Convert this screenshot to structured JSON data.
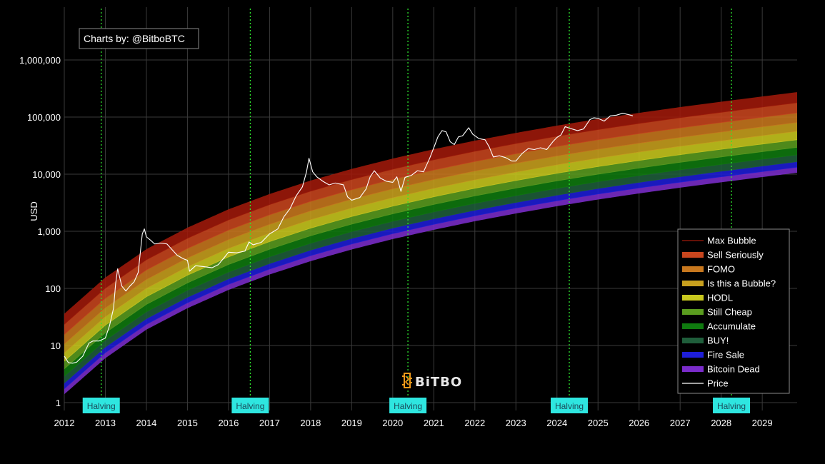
{
  "credit": "Charts by: @BitboBTC",
  "watermark": "BiTBO",
  "colors": {
    "background": "#000000",
    "grid": "#3a3a3a",
    "halving_line": "#2ee62e",
    "halving_label_bg": "#2ee6e0",
    "price_line": "#ffffff"
  },
  "chart_data": {
    "type": "line",
    "title": "",
    "xlabel": "",
    "ylabel": "USD",
    "y_scale": "log",
    "xlim": [
      2012,
      2029.85
    ],
    "ylim": [
      1,
      2000000
    ],
    "x_ticks": [
      {
        "value": 2012,
        "label": "2012"
      },
      {
        "value": 2013,
        "label": "2013"
      },
      {
        "value": 2014,
        "label": "2014"
      },
      {
        "value": 2015,
        "label": "2015"
      },
      {
        "value": 2016,
        "label": "2016"
      },
      {
        "value": 2017,
        "label": "2017"
      },
      {
        "value": 2018,
        "label": "2018"
      },
      {
        "value": 2019,
        "label": "2019"
      },
      {
        "value": 2020,
        "label": "2020"
      },
      {
        "value": 2021,
        "label": "2021"
      },
      {
        "value": 2022,
        "label": "2022"
      },
      {
        "value": 2023,
        "label": "2023"
      },
      {
        "value": 2024,
        "label": "2024"
      },
      {
        "value": 2025,
        "label": "2025"
      },
      {
        "value": 2026,
        "label": "2026"
      },
      {
        "value": 2027,
        "label": "2027"
      },
      {
        "value": 2028,
        "label": "2028"
      },
      {
        "value": 2029,
        "label": "2029"
      }
    ],
    "y_ticks": [
      {
        "value": 1,
        "label": "1"
      },
      {
        "value": 10,
        "label": "10"
      },
      {
        "value": 100,
        "label": "100"
      },
      {
        "value": 1000,
        "label": "1,000"
      },
      {
        "value": 10000,
        "label": "10,000"
      },
      {
        "value": 100000,
        "label": "100,000"
      },
      {
        "value": 1000000,
        "label": "1,000,000"
      }
    ],
    "grid": true,
    "legend_placement": "bottom-right",
    "band_boundaries": {
      "x": [
        2012.0,
        2013.0,
        2014.0,
        2015.0,
        2016.0,
        2017.0,
        2018.0,
        2019.0,
        2020.0,
        2021.0,
        2022.0,
        2023.0,
        2024.0,
        2025.0,
        2026.0,
        2027.0,
        2028.0,
        2029.0,
        2029.85
      ],
      "levels": [
        [
          1.4,
          6,
          19,
          45,
          94,
          175,
          300,
          480,
          730,
          1060,
          1500,
          2050,
          2750,
          3600,
          4600,
          5800,
          7200,
          8900,
          10600
        ],
        [
          1.75,
          7.5,
          23.5,
          56,
          118,
          218,
          375,
          600,
          910,
          1325,
          1870,
          2560,
          3430,
          4500,
          5750,
          7250,
          9000,
          11100,
          13250
        ],
        [
          2.2,
          9.4,
          29.5,
          70,
          147,
          272,
          469,
          750,
          1140,
          1660,
          2340,
          3200,
          4290,
          5620,
          7190,
          9060,
          11250,
          13900,
          16560
        ],
        [
          2.9,
          12.4,
          39,
          93,
          194,
          359,
          619,
          990,
          1500,
          2190,
          3090,
          4220,
          5660,
          7420,
          9490,
          11960,
          14850,
          18350,
          21860
        ],
        [
          3.9,
          16.7,
          52.5,
          125,
          262,
          485,
          835,
          1335,
          2025,
          2955,
          4170,
          5700,
          7640,
          10000,
          12800,
          16150,
          20050,
          24770,
          29500
        ],
        [
          5.3,
          22.7,
          71.5,
          170,
          356,
          660,
          1136,
          1816,
          2755,
          4020,
          5670,
          7750,
          10390,
          13600,
          17400,
          21960,
          27270,
          33690,
          40130
        ],
        [
          7.4,
          31.8,
          100,
          238,
          499,
          924,
          1590,
          2542,
          3857,
          5630,
          7940,
          10850,
          14550,
          19040,
          24360,
          30740,
          38180,
          47170,
          56180
        ],
        [
          10.6,
          45.5,
          143,
          340,
          713,
          1321,
          2274,
          3635,
          5516,
          8050,
          11350,
          15520,
          20800,
          27230,
          34830,
          43960,
          54600,
          67450,
          80340
        ],
        [
          15.6,
          66.9,
          210,
          500,
          1048,
          1942,
          3343,
          5343,
          8108,
          11830,
          16690,
          22810,
          30580,
          40030,
          51200,
          64620,
          80260,
          99150,
          118100
        ],
        [
          23.5,
          101,
          317,
          755,
          1582,
          2932,
          5047,
          8068,
          12240,
          17870,
          25200,
          34440,
          46170,
          60440,
          77310,
          97570,
          121200,
          149700,
          178300
        ],
        [
          36,
          155,
          486,
          1157,
          2424,
          4493,
          7735,
          12360,
          18760,
          27380,
          38620,
          52780,
          70760,
          92620,
          118500,
          149500,
          185700,
          229400,
          273300
        ]
      ]
    },
    "band_colors": [
      "#7b2ccb",
      "#1e1ed8",
      "#1f5e3b",
      "#0f7a0f",
      "#5a9c1f",
      "#c8c81e",
      "#c8a01e",
      "#c8781e",
      "#c8461e",
      "#a0190a"
    ],
    "series": [
      {
        "name": "Price",
        "color": "#ffffff",
        "x": [
          2012.0,
          2012.1,
          2012.2,
          2012.3,
          2012.45,
          2012.6,
          2012.7,
          2012.85,
          2013.0,
          2013.1,
          2013.2,
          2013.25,
          2013.3,
          2013.4,
          2013.5,
          2013.6,
          2013.7,
          2013.8,
          2013.9,
          2013.95,
          2014.0,
          2014.1,
          2014.2,
          2014.35,
          2014.5,
          2014.6,
          2014.75,
          2014.9,
          2015.0,
          2015.05,
          2015.2,
          2015.4,
          2015.6,
          2015.75,
          2015.9,
          2016.0,
          2016.2,
          2016.4,
          2016.5,
          2016.6,
          2016.8,
          2017.0,
          2017.2,
          2017.35,
          2017.5,
          2017.65,
          2017.8,
          2017.9,
          2017.96,
          2018.05,
          2018.15,
          2018.3,
          2018.45,
          2018.6,
          2018.8,
          2018.9,
          2019.0,
          2019.2,
          2019.35,
          2019.45,
          2019.55,
          2019.7,
          2019.85,
          2020.0,
          2020.1,
          2020.2,
          2020.3,
          2020.45,
          2020.6,
          2020.75,
          2020.9,
          2021.0,
          2021.1,
          2021.2,
          2021.3,
          2021.4,
          2021.5,
          2021.6,
          2021.7,
          2021.85,
          2021.95,
          2022.1,
          2022.25,
          2022.35,
          2022.45,
          2022.6,
          2022.75,
          2022.9,
          2023.0,
          2023.15,
          2023.3,
          2023.45,
          2023.6,
          2023.75,
          2023.9,
          2024.0,
          2024.1,
          2024.2,
          2024.3,
          2024.5,
          2024.65,
          2024.8,
          2024.9,
          2025.0,
          2025.15,
          2025.3,
          2025.45,
          2025.6,
          2025.75,
          2025.85
        ],
        "y": [
          6.5,
          5.0,
          4.9,
          5.1,
          6.5,
          11,
          12,
          12,
          13.5,
          22,
          45,
          120,
          220,
          110,
          90,
          110,
          130,
          190,
          900,
          1100,
          800,
          700,
          600,
          620,
          600,
          500,
          380,
          330,
          310,
          200,
          250,
          240,
          230,
          260,
          350,
          430,
          420,
          450,
          650,
          580,
          640,
          900,
          1100,
          1800,
          2500,
          4200,
          6000,
          11000,
          19000,
          11000,
          9000,
          7500,
          6500,
          7000,
          6500,
          4000,
          3500,
          3900,
          5500,
          9000,
          11500,
          8500,
          7500,
          7200,
          9000,
          5000,
          8800,
          9500,
          11500,
          11000,
          19000,
          29000,
          45000,
          58000,
          55000,
          37000,
          33000,
          45000,
          47000,
          65000,
          50000,
          42000,
          40000,
          30000,
          20000,
          21000,
          19500,
          17000,
          17000,
          23000,
          28000,
          27000,
          29000,
          27000,
          37000,
          44000,
          49000,
          68000,
          64000,
          58000,
          62000,
          90000,
          97000,
          95000,
          85000,
          105000,
          108000,
          117000,
          110000,
          105000
        ]
      }
    ],
    "halvings": [
      {
        "x": 2012.9,
        "label": "Halving"
      },
      {
        "x": 2016.53,
        "label": "Halving"
      },
      {
        "x": 2020.37,
        "label": "Halving"
      },
      {
        "x": 2024.3,
        "label": "Halving"
      },
      {
        "x": 2028.25,
        "label": "Halving"
      }
    ],
    "legend": [
      {
        "label": "Max Bubble",
        "color": "#a0190a",
        "style": "line"
      },
      {
        "label": "Sell Seriously",
        "color": "#c8461e",
        "style": "band"
      },
      {
        "label": "FOMO",
        "color": "#c8781e",
        "style": "band"
      },
      {
        "label": "Is this a Bubble?",
        "color": "#c8a01e",
        "style": "band"
      },
      {
        "label": "HODL",
        "color": "#c8c81e",
        "style": "band"
      },
      {
        "label": "Still Cheap",
        "color": "#5a9c1f",
        "style": "band"
      },
      {
        "label": "Accumulate",
        "color": "#0f7a0f",
        "style": "band"
      },
      {
        "label": "BUY!",
        "color": "#1f5e3b",
        "style": "band"
      },
      {
        "label": "Fire Sale",
        "color": "#1e1ed8",
        "style": "band"
      },
      {
        "label": "Bitcoin Dead",
        "color": "#7b2ccb",
        "style": "band"
      },
      {
        "label": "Price",
        "color": "#ffffff",
        "style": "line"
      }
    ]
  }
}
